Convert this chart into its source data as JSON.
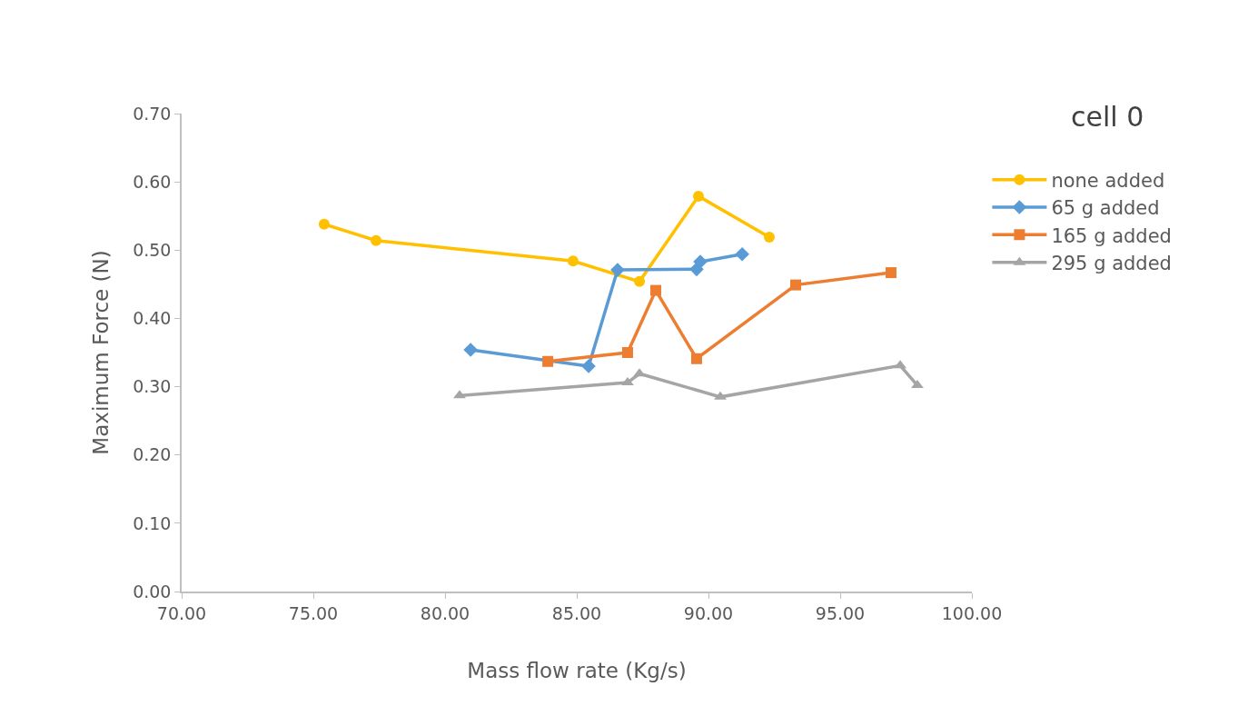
{
  "chart_data": {
    "type": "line",
    "title": "cell 0",
    "xlabel": "Mass flow rate (Kg/s)",
    "ylabel": "Maximum Force (N)",
    "xlim": [
      70,
      100
    ],
    "xticks": [
      {
        "value": 70,
        "label": "70.00"
      },
      {
        "value": 75,
        "label": "75.00"
      },
      {
        "value": 80,
        "label": "80.00"
      },
      {
        "value": 85,
        "label": "85.00"
      },
      {
        "value": 90,
        "label": "90.00"
      },
      {
        "value": 95,
        "label": "95.00"
      },
      {
        "value": 100,
        "label": "100.00"
      }
    ],
    "ylim": [
      0,
      0.7
    ],
    "yticks": [
      {
        "value": 0,
        "label": "0.00"
      },
      {
        "value": 0.1,
        "label": "0.10"
      },
      {
        "value": 0.2,
        "label": "0.20"
      },
      {
        "value": 0.3,
        "label": "0.30"
      },
      {
        "value": 0.4,
        "label": "0.40"
      },
      {
        "value": 0.5,
        "label": "0.50"
      },
      {
        "value": 0.6,
        "label": "0.60"
      },
      {
        "value": 0.7,
        "label": "0.70"
      }
    ],
    "grid": false,
    "legend": "right",
    "line_style": "solid",
    "series": [
      {
        "name": "none added",
        "color": "#ffc000",
        "marker": "circle",
        "x": [
          75.41,
          77.38,
          84.86,
          87.38,
          89.62,
          92.31
        ],
        "values": [
          0.538,
          0.514,
          0.484,
          0.454,
          0.579,
          0.519
        ]
      },
      {
        "name": "65 g added",
        "color": "#5b9bd5",
        "marker": "diamond",
        "x": [
          80.97,
          85.45,
          86.55,
          89.55,
          89.69,
          91.28
        ],
        "values": [
          0.354,
          0.33,
          0.471,
          0.472,
          0.483,
          0.494
        ]
      },
      {
        "name": "165 g added",
        "color": "#ed7d31",
        "marker": "square",
        "x": [
          83.9,
          86.93,
          88.0,
          89.55,
          93.31,
          96.93
        ],
        "values": [
          0.337,
          0.35,
          0.441,
          0.341,
          0.449,
          0.467
        ]
      },
      {
        "name": "295 g added",
        "color": "#a5a5a5",
        "marker": "triangle",
        "x": [
          80.55,
          86.93,
          87.38,
          90.45,
          97.28,
          97.93
        ],
        "values": [
          0.287,
          0.306,
          0.319,
          0.285,
          0.331,
          0.302
        ]
      }
    ]
  }
}
